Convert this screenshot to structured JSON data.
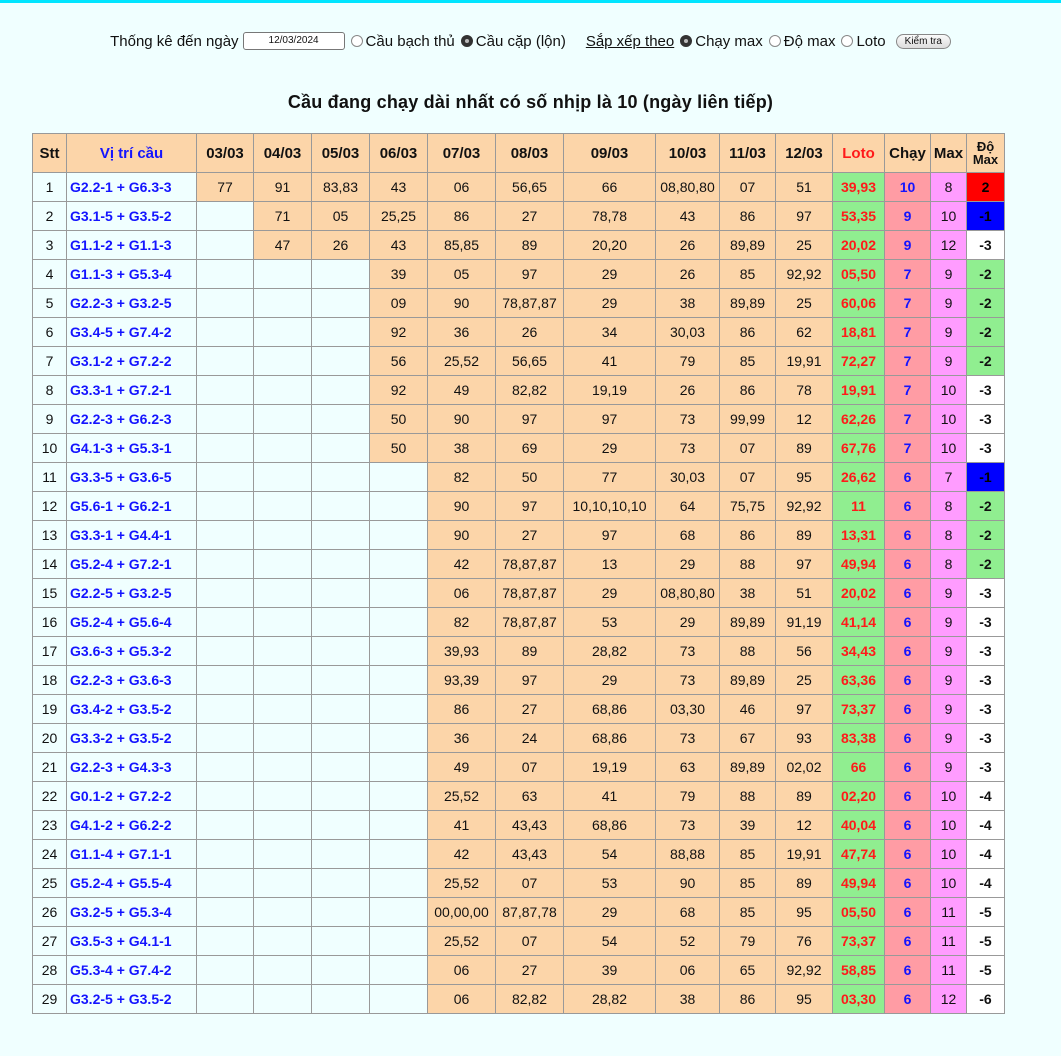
{
  "controls": {
    "date_label": "Thống kê đến ngày",
    "date_value": "12/03/2024",
    "radio_bach_thu": "Cầu bạch thủ",
    "radio_cap": "Cầu cặp (lộn)",
    "sort_label": "Sắp xếp theo",
    "radio_chay_max": "Chạy max",
    "radio_do_max": "Độ max",
    "radio_loto": "Loto",
    "button": "Kiểm tra"
  },
  "heading": "Cầu đang chạy dài nhất có số nhịp là 10 (ngày liên tiếp)",
  "table": {
    "headers": {
      "stt": "Stt",
      "vitri": "Vị trí cầu",
      "dates": [
        "03/03",
        "04/03",
        "05/03",
        "06/03",
        "07/03",
        "08/03",
        "09/03",
        "10/03",
        "11/03",
        "12/03"
      ],
      "loto": "Loto",
      "chay": "Chạy",
      "max": "Max",
      "domax_1": "Độ",
      "domax_2": "Max"
    },
    "rows": [
      {
        "stt": "1",
        "vitri": "G2.2-1 + G6.3-3",
        "days": [
          "77",
          "91",
          "83,83",
          "43",
          "06",
          "56,65",
          "66",
          "08,80,80",
          "07",
          "51"
        ],
        "loto": "39,93",
        "chay": "10",
        "max": "8",
        "domax": "2",
        "dmstyle": "pos"
      },
      {
        "stt": "2",
        "vitri": "G3.1-5 + G3.5-2",
        "days": [
          "",
          "71",
          "05",
          "25,25",
          "86",
          "27",
          "78,78",
          "43",
          "86",
          "97"
        ],
        "loto": "53,35",
        "chay": "9",
        "max": "10",
        "domax": "-1",
        "dmstyle": "blue"
      },
      {
        "stt": "3",
        "vitri": "G1.1-2 + G1.1-3",
        "days": [
          "",
          "47",
          "26",
          "43",
          "85,85",
          "89",
          "20,20",
          "26",
          "89,89",
          "25"
        ],
        "loto": "20,02",
        "chay": "9",
        "max": "12",
        "domax": "-3",
        "dmstyle": "plain"
      },
      {
        "stt": "4",
        "vitri": "G1.1-3 + G5.3-4",
        "days": [
          "",
          "",
          "",
          "39",
          "05",
          "97",
          "29",
          "26",
          "85",
          "92,92"
        ],
        "loto": "05,50",
        "chay": "7",
        "max": "9",
        "domax": "-2",
        "dmstyle": "green"
      },
      {
        "stt": "5",
        "vitri": "G2.2-3 + G3.2-5",
        "days": [
          "",
          "",
          "",
          "09",
          "90",
          "78,87,87",
          "29",
          "38",
          "89,89",
          "25"
        ],
        "loto": "60,06",
        "chay": "7",
        "max": "9",
        "domax": "-2",
        "dmstyle": "green"
      },
      {
        "stt": "6",
        "vitri": "G3.4-5 + G7.4-2",
        "days": [
          "",
          "",
          "",
          "92",
          "36",
          "26",
          "34",
          "30,03",
          "86",
          "62"
        ],
        "loto": "18,81",
        "chay": "7",
        "max": "9",
        "domax": "-2",
        "dmstyle": "green"
      },
      {
        "stt": "7",
        "vitri": "G3.1-2 + G7.2-2",
        "days": [
          "",
          "",
          "",
          "56",
          "25,52",
          "56,65",
          "41",
          "79",
          "85",
          "19,91"
        ],
        "loto": "72,27",
        "chay": "7",
        "max": "9",
        "domax": "-2",
        "dmstyle": "green"
      },
      {
        "stt": "8",
        "vitri": "G3.3-1 + G7.2-1",
        "days": [
          "",
          "",
          "",
          "92",
          "49",
          "82,82",
          "19,19",
          "26",
          "86",
          "78"
        ],
        "loto": "19,91",
        "chay": "7",
        "max": "10",
        "domax": "-3",
        "dmstyle": "plain"
      },
      {
        "stt": "9",
        "vitri": "G2.2-3 + G6.2-3",
        "days": [
          "",
          "",
          "",
          "50",
          "90",
          "97",
          "97",
          "73",
          "99,99",
          "12"
        ],
        "loto": "62,26",
        "chay": "7",
        "max": "10",
        "domax": "-3",
        "dmstyle": "plain"
      },
      {
        "stt": "10",
        "vitri": "G4.1-3 + G5.3-1",
        "days": [
          "",
          "",
          "",
          "50",
          "38",
          "69",
          "29",
          "73",
          "07",
          "89"
        ],
        "loto": "67,76",
        "chay": "7",
        "max": "10",
        "domax": "-3",
        "dmstyle": "plain"
      },
      {
        "stt": "11",
        "vitri": "G3.3-5 + G3.6-5",
        "days": [
          "",
          "",
          "",
          "",
          "82",
          "50",
          "77",
          "30,03",
          "07",
          "95"
        ],
        "loto": "26,62",
        "chay": "6",
        "max": "7",
        "domax": "-1",
        "dmstyle": "blue"
      },
      {
        "stt": "12",
        "vitri": "G5.6-1 + G6.2-1",
        "days": [
          "",
          "",
          "",
          "",
          "90",
          "97",
          "10,10,10,10",
          "64",
          "75,75",
          "92,92"
        ],
        "loto": "11",
        "chay": "6",
        "max": "8",
        "domax": "-2",
        "dmstyle": "green"
      },
      {
        "stt": "13",
        "vitri": "G3.3-1 + G4.4-1",
        "days": [
          "",
          "",
          "",
          "",
          "90",
          "27",
          "97",
          "68",
          "86",
          "89"
        ],
        "loto": "13,31",
        "chay": "6",
        "max": "8",
        "domax": "-2",
        "dmstyle": "green"
      },
      {
        "stt": "14",
        "vitri": "G5.2-4 + G7.2-1",
        "days": [
          "",
          "",
          "",
          "",
          "42",
          "78,87,87",
          "13",
          "29",
          "88",
          "97"
        ],
        "loto": "49,94",
        "chay": "6",
        "max": "8",
        "domax": "-2",
        "dmstyle": "green"
      },
      {
        "stt": "15",
        "vitri": "G2.2-5 + G3.2-5",
        "days": [
          "",
          "",
          "",
          "",
          "06",
          "78,87,87",
          "29",
          "08,80,80",
          "38",
          "51"
        ],
        "loto": "20,02",
        "chay": "6",
        "max": "9",
        "domax": "-3",
        "dmstyle": "plain"
      },
      {
        "stt": "16",
        "vitri": "G5.2-4 + G5.6-4",
        "days": [
          "",
          "",
          "",
          "",
          "82",
          "78,87,87",
          "53",
          "29",
          "89,89",
          "91,19"
        ],
        "loto": "41,14",
        "chay": "6",
        "max": "9",
        "domax": "-3",
        "dmstyle": "plain"
      },
      {
        "stt": "17",
        "vitri": "G3.6-3 + G5.3-2",
        "days": [
          "",
          "",
          "",
          "",
          "39,93",
          "89",
          "28,82",
          "73",
          "88",
          "56"
        ],
        "loto": "34,43",
        "chay": "6",
        "max": "9",
        "domax": "-3",
        "dmstyle": "plain"
      },
      {
        "stt": "18",
        "vitri": "G2.2-3 + G3.6-3",
        "days": [
          "",
          "",
          "",
          "",
          "93,39",
          "97",
          "29",
          "73",
          "89,89",
          "25"
        ],
        "loto": "63,36",
        "chay": "6",
        "max": "9",
        "domax": "-3",
        "dmstyle": "plain"
      },
      {
        "stt": "19",
        "vitri": "G3.4-2 + G3.5-2",
        "days": [
          "",
          "",
          "",
          "",
          "86",
          "27",
          "68,86",
          "03,30",
          "46",
          "97"
        ],
        "loto": "73,37",
        "chay": "6",
        "max": "9",
        "domax": "-3",
        "dmstyle": "plain"
      },
      {
        "stt": "20",
        "vitri": "G3.3-2 + G3.5-2",
        "days": [
          "",
          "",
          "",
          "",
          "36",
          "24",
          "68,86",
          "73",
          "67",
          "93"
        ],
        "loto": "83,38",
        "chay": "6",
        "max": "9",
        "domax": "-3",
        "dmstyle": "plain"
      },
      {
        "stt": "21",
        "vitri": "G2.2-3 + G4.3-3",
        "days": [
          "",
          "",
          "",
          "",
          "49",
          "07",
          "19,19",
          "63",
          "89,89",
          "02,02"
        ],
        "loto": "66",
        "chay": "6",
        "max": "9",
        "domax": "-3",
        "dmstyle": "plain"
      },
      {
        "stt": "22",
        "vitri": "G0.1-2 + G7.2-2",
        "days": [
          "",
          "",
          "",
          "",
          "25,52",
          "63",
          "41",
          "79",
          "88",
          "89"
        ],
        "loto": "02,20",
        "chay": "6",
        "max": "10",
        "domax": "-4",
        "dmstyle": "plain"
      },
      {
        "stt": "23",
        "vitri": "G4.1-2 + G6.2-2",
        "days": [
          "",
          "",
          "",
          "",
          "41",
          "43,43",
          "68,86",
          "73",
          "39",
          "12"
        ],
        "loto": "40,04",
        "chay": "6",
        "max": "10",
        "domax": "-4",
        "dmstyle": "plain"
      },
      {
        "stt": "24",
        "vitri": "G1.1-4 + G7.1-1",
        "days": [
          "",
          "",
          "",
          "",
          "42",
          "43,43",
          "54",
          "88,88",
          "85",
          "19,91"
        ],
        "loto": "47,74",
        "chay": "6",
        "max": "10",
        "domax": "-4",
        "dmstyle": "plain"
      },
      {
        "stt": "25",
        "vitri": "G5.2-4 + G5.5-4",
        "days": [
          "",
          "",
          "",
          "",
          "25,52",
          "07",
          "53",
          "90",
          "85",
          "89"
        ],
        "loto": "49,94",
        "chay": "6",
        "max": "10",
        "domax": "-4",
        "dmstyle": "plain"
      },
      {
        "stt": "26",
        "vitri": "G3.2-5 + G5.3-4",
        "days": [
          "",
          "",
          "",
          "",
          "00,00,00",
          "87,87,78",
          "29",
          "68",
          "85",
          "95"
        ],
        "loto": "05,50",
        "chay": "6",
        "max": "11",
        "domax": "-5",
        "dmstyle": "plain"
      },
      {
        "stt": "27",
        "vitri": "G3.5-3 + G4.1-1",
        "days": [
          "",
          "",
          "",
          "",
          "25,52",
          "07",
          "54",
          "52",
          "79",
          "76"
        ],
        "loto": "73,37",
        "chay": "6",
        "max": "11",
        "domax": "-5",
        "dmstyle": "plain"
      },
      {
        "stt": "28",
        "vitri": "G5.3-4 + G7.4-2",
        "days": [
          "",
          "",
          "",
          "",
          "06",
          "27",
          "39",
          "06",
          "65",
          "92,92"
        ],
        "loto": "58,85",
        "chay": "6",
        "max": "11",
        "domax": "-5",
        "dmstyle": "plain"
      },
      {
        "stt": "29",
        "vitri": "G3.2-5 + G3.5-2",
        "days": [
          "",
          "",
          "",
          "",
          "06",
          "82,82",
          "28,82",
          "38",
          "86",
          "95"
        ],
        "loto": "03,30",
        "chay": "6",
        "max": "12",
        "domax": "-6",
        "dmstyle": "plain"
      }
    ]
  }
}
